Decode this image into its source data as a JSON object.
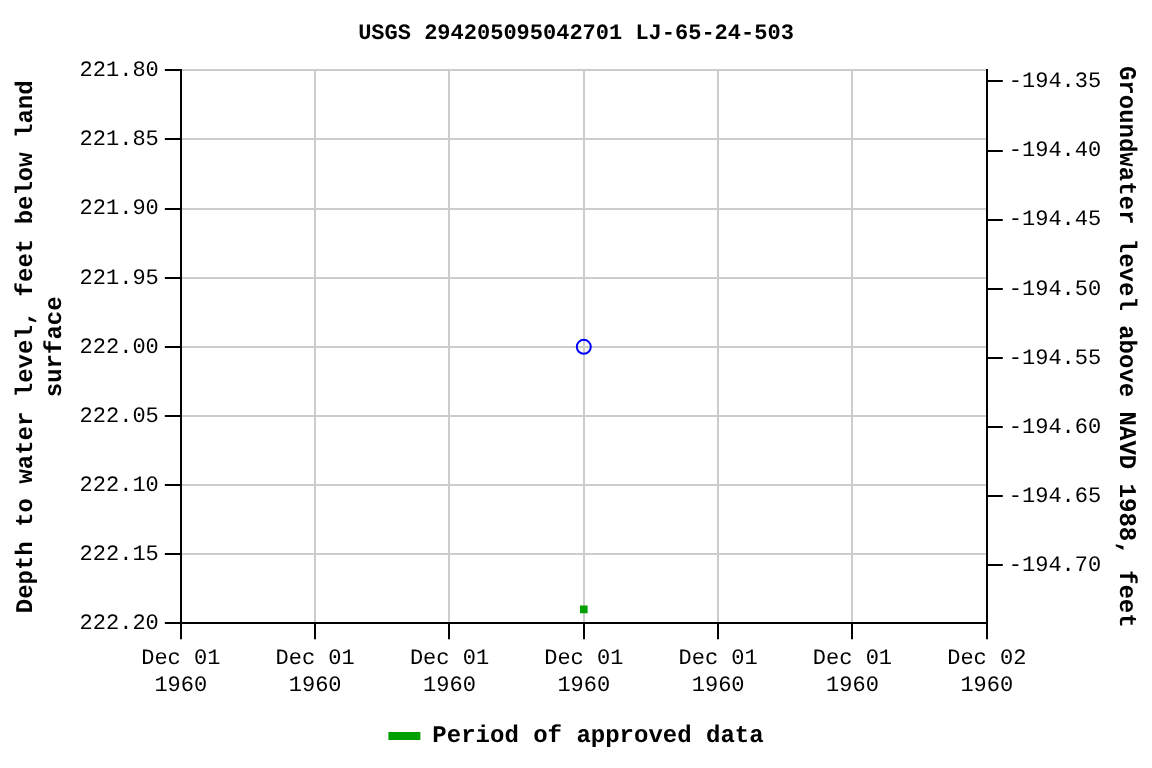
{
  "chart_data": {
    "type": "scatter",
    "title": "USGS 294205095042701 LJ-65-24-503",
    "ylabel": "Depth to water level, feet below land surface",
    "y2label": "Groundwater level above NAVD 1988, feet",
    "xlim": [
      "1960-12-01T00:00",
      "1960-12-02T00:00"
    ],
    "xticks": [
      {
        "value": "1960-12-01T00:00",
        "label": "Dec 01\n1960"
      },
      {
        "value": "1960-12-01T04:00",
        "label": "Dec 01\n1960"
      },
      {
        "value": "1960-12-01T08:00",
        "label": "Dec 01\n1960"
      },
      {
        "value": "1960-12-01T12:00",
        "label": "Dec 01\n1960"
      },
      {
        "value": "1960-12-01T16:00",
        "label": "Dec 01\n1960"
      },
      {
        "value": "1960-12-01T20:00",
        "label": "Dec 01\n1960"
      },
      {
        "value": "1960-12-02T00:00",
        "label": "Dec 02\n1960"
      }
    ],
    "ylim": [
      222.2,
      221.8
    ],
    "yticks": [
      {
        "value": 221.8,
        "label": "221.80"
      },
      {
        "value": 221.85,
        "label": "221.85"
      },
      {
        "value": 221.9,
        "label": "221.90"
      },
      {
        "value": 221.95,
        "label": "221.95"
      },
      {
        "value": 222.0,
        "label": "222.00"
      },
      {
        "value": 222.05,
        "label": "222.05"
      },
      {
        "value": 222.1,
        "label": "222.10"
      },
      {
        "value": 222.15,
        "label": "222.15"
      },
      {
        "value": 222.2,
        "label": "222.20"
      }
    ],
    "y2lim": [
      -194.742,
      -194.342
    ],
    "y2ticks": [
      {
        "value": -194.35,
        "label": "-194.35"
      },
      {
        "value": -194.4,
        "label": "-194.40"
      },
      {
        "value": -194.45,
        "label": "-194.45"
      },
      {
        "value": -194.5,
        "label": "-194.50"
      },
      {
        "value": -194.55,
        "label": "-194.55"
      },
      {
        "value": -194.6,
        "label": "-194.60"
      },
      {
        "value": -194.65,
        "label": "-194.65"
      },
      {
        "value": -194.7,
        "label": "-194.70"
      }
    ],
    "series": [
      {
        "marker": "circle",
        "color": "#0000ff",
        "x": [
          "1960-12-01T12:00"
        ],
        "values": [
          222.0
        ]
      },
      {
        "marker": "square",
        "name": "Period of approved data",
        "color": "#00a000",
        "x": [
          "1960-12-01T12:00"
        ],
        "values": [
          222.19
        ]
      }
    ],
    "grid": true,
    "legend": "bottom"
  }
}
